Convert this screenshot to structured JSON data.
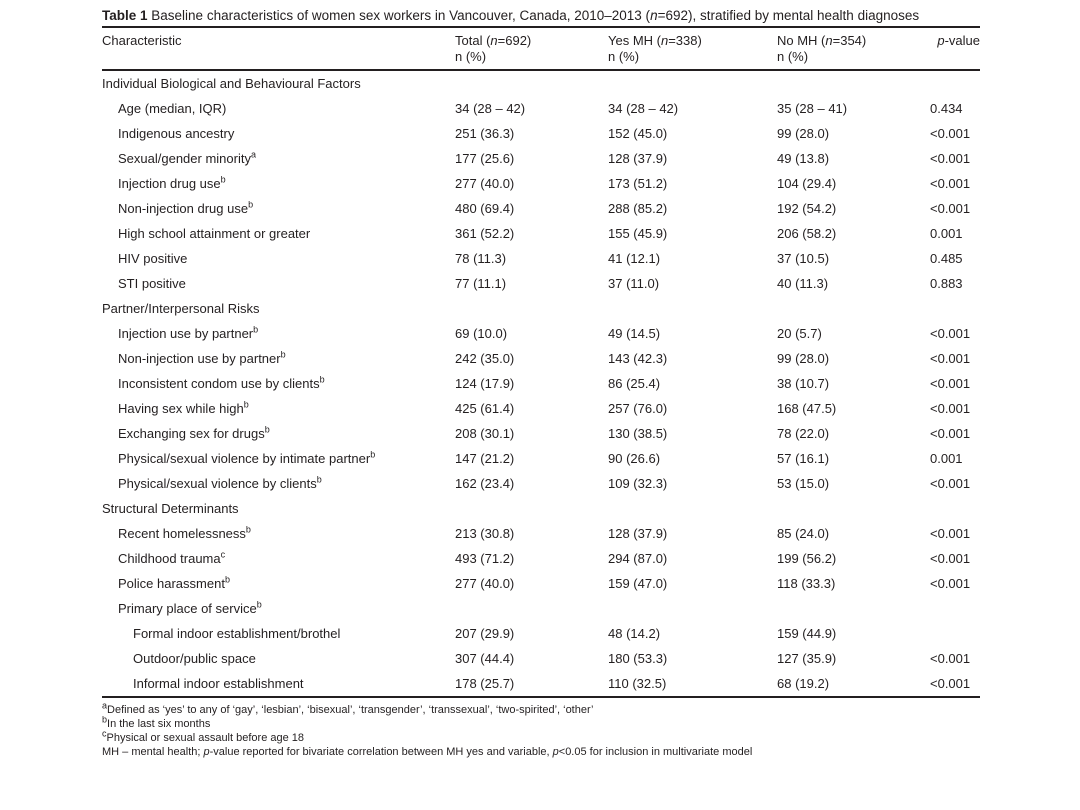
{
  "page": {
    "background": "#ffffff",
    "text_color": "#231f20",
    "rule_color": "#231f20"
  },
  "table": {
    "title_parts": [
      {
        "t": "Table 1",
        "b": true
      },
      {
        "t": " Baseline characteristics of women sex workers in Vancouver, Canada, 2010–2013 ("
      },
      {
        "t": "n",
        "i": true
      },
      {
        "t": "=692), stratified by mental health diagnoses"
      }
    ],
    "header": {
      "characteristic": "Characteristic",
      "columns": [
        {
          "parts": [
            {
              "t": "Total ("
            },
            {
              "t": "n",
              "i": true
            },
            {
              "t": "=692)"
            }
          ],
          "line2": "n (%)"
        },
        {
          "parts": [
            {
              "t": "Yes MH ("
            },
            {
              "t": "n",
              "i": true
            },
            {
              "t": "=338)"
            }
          ],
          "line2": "n (%)"
        },
        {
          "parts": [
            {
              "t": "No MH ("
            },
            {
              "t": "n",
              "i": true
            },
            {
              "t": "=354)"
            }
          ],
          "line2": "n (%)"
        }
      ],
      "pvalue_parts": [
        {
          "t": "p",
          "i": true
        },
        {
          "t": "-value"
        }
      ]
    },
    "rows": [
      {
        "type": "section",
        "label": "Individual Biological and Behavioural Factors"
      },
      {
        "type": "item",
        "label": "Age (median, IQR)",
        "values": [
          "34 (28 – 42)",
          "34 (28 – 42)",
          "35 (28 – 41)",
          "0.434"
        ]
      },
      {
        "type": "item",
        "label": "Indigenous ancestry",
        "values": [
          "251 (36.3)",
          "152 (45.0)",
          "99 (28.0)",
          "<0.001"
        ]
      },
      {
        "type": "item",
        "label": "Sexual/gender minority",
        "sup": "a",
        "values": [
          "177 (25.6)",
          "128 (37.9)",
          "49 (13.8)",
          "<0.001"
        ]
      },
      {
        "type": "item",
        "label": "Injection drug use",
        "sup": "b",
        "values": [
          "277 (40.0)",
          "173 (51.2)",
          "104 (29.4)",
          "<0.001"
        ]
      },
      {
        "type": "item",
        "label": "Non-injection drug use",
        "sup": "b",
        "values": [
          "480 (69.4)",
          "288 (85.2)",
          "192 (54.2)",
          "<0.001"
        ]
      },
      {
        "type": "item",
        "label": "High school attainment or greater",
        "values": [
          "361 (52.2)",
          "155 (45.9)",
          "206 (58.2)",
          "0.001"
        ]
      },
      {
        "type": "item",
        "label": "HIV positive",
        "values": [
          "78 (11.3)",
          "41 (12.1)",
          "37 (10.5)",
          "0.485"
        ]
      },
      {
        "type": "item",
        "label": "STI positive",
        "values": [
          "77 (11.1)",
          "37 (11.0)",
          "40 (11.3)",
          "0.883"
        ]
      },
      {
        "type": "section",
        "label": "Partner/Interpersonal Risks"
      },
      {
        "type": "item",
        "label": "Injection use by partner",
        "sup": "b",
        "values": [
          "69 (10.0)",
          "49 (14.5)",
          "20 (5.7)",
          "<0.001"
        ]
      },
      {
        "type": "item",
        "label": "Non-injection use by partner",
        "sup": "b",
        "values": [
          "242 (35.0)",
          "143 (42.3)",
          "99 (28.0)",
          "<0.001"
        ]
      },
      {
        "type": "item",
        "label": "Inconsistent condom use by clients",
        "sup": "b",
        "values": [
          "124 (17.9)",
          "86 (25.4)",
          "38 (10.7)",
          "<0.001"
        ]
      },
      {
        "type": "item",
        "label": "Having sex while high",
        "sup": "b",
        "values": [
          "425 (61.4)",
          "257 (76.0)",
          "168 (47.5)",
          "<0.001"
        ]
      },
      {
        "type": "item",
        "label": "Exchanging sex for drugs",
        "sup": "b",
        "values": [
          "208 (30.1)",
          "130 (38.5)",
          "78 (22.0)",
          "<0.001"
        ]
      },
      {
        "type": "item",
        "label": "Physical/sexual violence by intimate partner",
        "sup": "b",
        "values": [
          "147 (21.2)",
          "90 (26.6)",
          "57 (16.1)",
          "0.001"
        ]
      },
      {
        "type": "item",
        "label": "Physical/sexual violence by clients",
        "sup": "b",
        "values": [
          "162 (23.4)",
          "109 (32.3)",
          "53 (15.0)",
          "<0.001"
        ]
      },
      {
        "type": "section",
        "label": "Structural Determinants"
      },
      {
        "type": "item",
        "label": "Recent homelessness",
        "sup": "b",
        "values": [
          "213 (30.8)",
          "128 (37.9)",
          "85 (24.0)",
          "<0.001"
        ]
      },
      {
        "type": "item",
        "label": "Childhood trauma",
        "sup": "c",
        "values": [
          "493 (71.2)",
          "294 (87.0)",
          "199 (56.2)",
          "<0.001"
        ]
      },
      {
        "type": "item",
        "label": "Police harassment",
        "sup": "b",
        "values": [
          "277 (40.0)",
          "159 (47.0)",
          "118 (33.3)",
          "<0.001"
        ]
      },
      {
        "type": "subheader",
        "label": "Primary place of service",
        "sup": "b"
      },
      {
        "type": "item2",
        "label": "Formal indoor establishment/brothel",
        "values": [
          "207 (29.9)",
          "48 (14.2)",
          "159 (44.9)",
          ""
        ]
      },
      {
        "type": "item2",
        "label": "Outdoor/public space",
        "values": [
          "307 (44.4)",
          "180 (53.3)",
          "127 (35.9)",
          "<0.001"
        ]
      },
      {
        "type": "item2",
        "label": "Informal indoor establishment",
        "values": [
          "178 (25.7)",
          "110 (32.5)",
          "68 (19.2)",
          "<0.001"
        ]
      }
    ],
    "footnotes": [
      {
        "sup": "a",
        "parts": [
          {
            "t": "Defined as ‘yes’ to any of ‘gay’, ‘lesbian’, ‘bisexual’, ‘transgender’, ‘transsexual’, ‘two-spirited’, ‘other’"
          }
        ]
      },
      {
        "sup": "b",
        "parts": [
          {
            "t": "In the last six months"
          }
        ]
      },
      {
        "sup": "c",
        "parts": [
          {
            "t": "Physical or sexual assault before age 18"
          }
        ]
      },
      {
        "parts": [
          {
            "t": "MH – mental health; "
          },
          {
            "t": "p",
            "i": true
          },
          {
            "t": "-value reported for bivariate correlation between MH yes and variable, "
          },
          {
            "t": "p",
            "i": true
          },
          {
            "t": "<0.05 for inclusion in multivariate model"
          }
        ]
      }
    ]
  }
}
